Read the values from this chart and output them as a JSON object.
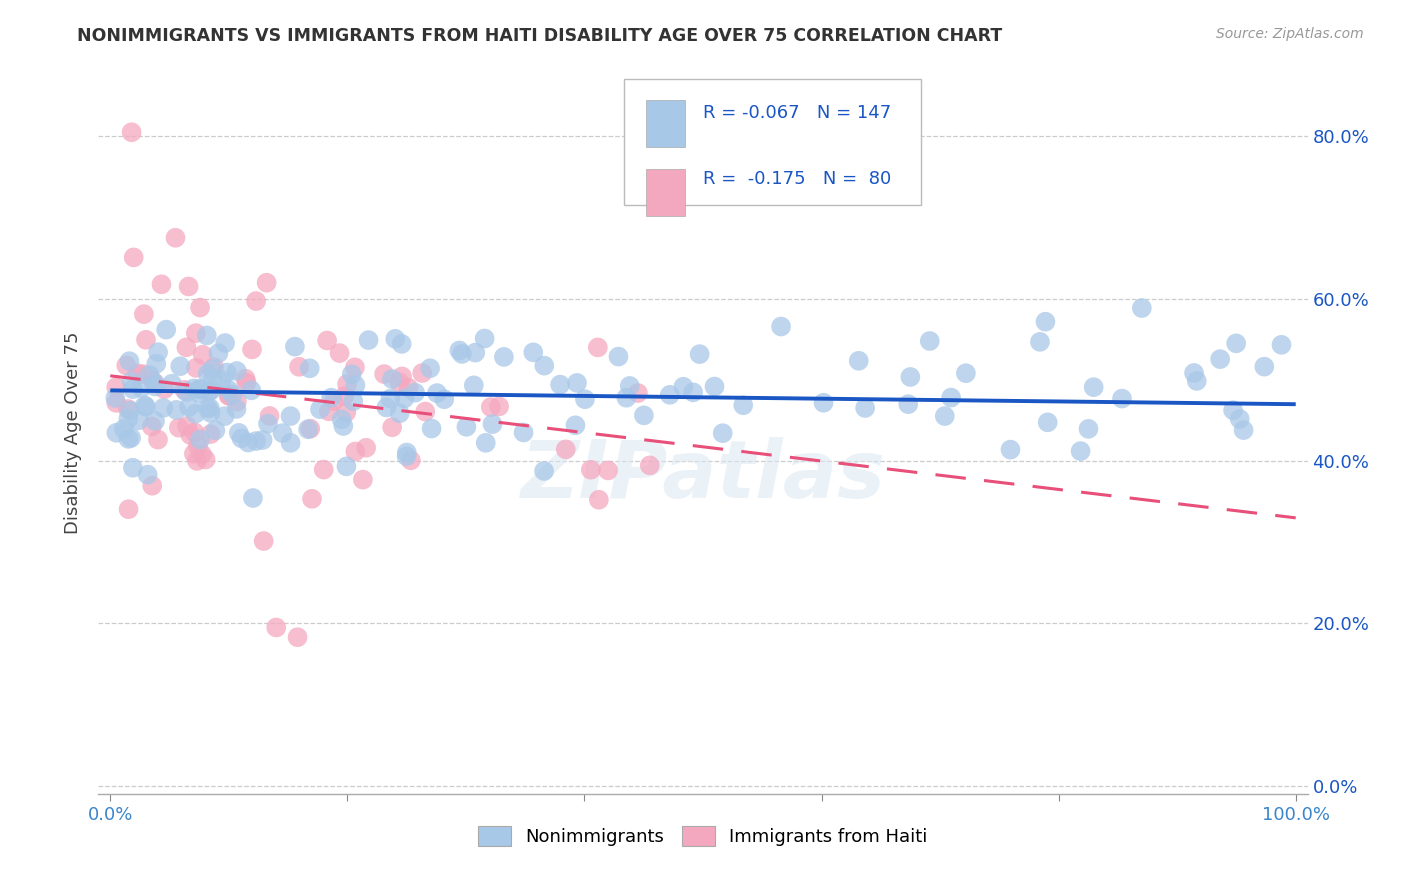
{
  "title": "NONIMMIGRANTS VS IMMIGRANTS FROM HAITI DISABILITY AGE OVER 75 CORRELATION CHART",
  "source": "Source: ZipAtlas.com",
  "ylabel": "Disability Age Over 75",
  "nonimmigrant_color": "#a8c8e8",
  "immigrant_color": "#f4a8c0",
  "nonimmigrant_line_color": "#1a56c4",
  "immigrant_line_color": "#e8507a",
  "legend_text_color": "#1a56c4",
  "legend_label_color": "#333333",
  "legend_R_nonimmigrant": "-0.067",
  "legend_N_nonimmigrant": "147",
  "legend_R_immigrant": "-0.175",
  "legend_N_immigrant": "80",
  "watermark": "ZIPatlas",
  "x_min": 0.0,
  "x_max": 1.0,
  "y_min": 0.0,
  "y_max": 0.88,
  "nonimmigrant_trend": [
    0.487,
    0.47
  ],
  "immigrant_trend": [
    0.505,
    0.33
  ]
}
